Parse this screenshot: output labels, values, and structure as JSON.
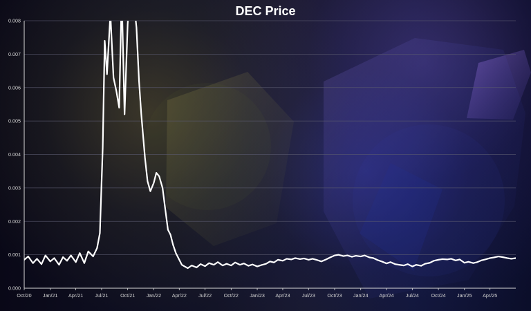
{
  "chart_data": {
    "type": "line",
    "title": "DEC Price",
    "xlabel": "",
    "ylabel": "",
    "ylim": [
      0,
      0.008
    ],
    "xlim": [
      "2020-10-01",
      "2025-07-01"
    ],
    "grid": true,
    "x_ticks": [
      "Oct/20",
      "Jan/21",
      "Apr/21",
      "Jul/21",
      "Oct/21",
      "Jan/22",
      "Apr/22",
      "Jul/22",
      "Oct/22",
      "Jan/23",
      "Apr/23",
      "Jul/23",
      "Oct/23",
      "Jan/24",
      "Apr/24",
      "Jul/24",
      "Oct/24",
      "Jan/25",
      "Apr/25"
    ],
    "y_ticks": [
      "0.000",
      "0.001",
      "0.002",
      "0.003",
      "0.004",
      "0.005",
      "0.006",
      "0.007",
      "0.008"
    ],
    "series": [
      {
        "x": [
          "2020-10-01",
          "2020-10-15",
          "2020-11-01",
          "2020-11-15",
          "2020-12-01",
          "2020-12-15",
          "2021-01-01",
          "2021-01-15",
          "2021-02-01",
          "2021-02-15",
          "2021-03-01",
          "2021-03-15",
          "2021-04-01",
          "2021-04-15",
          "2021-05-01",
          "2021-05-15",
          "2021-06-01",
          "2021-06-15",
          "2021-06-25",
          "2021-07-05",
          "2021-07-12",
          "2021-07-20",
          "2021-08-01",
          "2021-08-12",
          "2021-08-22",
          "2021-09-01",
          "2021-09-10",
          "2021-09-20",
          "2021-10-01",
          "2021-10-10",
          "2021-10-20",
          "2021-11-01",
          "2021-11-10",
          "2021-11-18",
          "2021-11-25",
          "2021-12-01",
          "2021-12-10",
          "2021-12-20",
          "2022-01-01",
          "2022-01-10",
          "2022-01-20",
          "2022-02-01",
          "2022-02-10",
          "2022-02-20",
          "2022-03-01",
          "2022-03-10",
          "2022-03-20",
          "2022-04-01",
          "2022-04-10",
          "2022-04-20",
          "2022-05-01",
          "2022-05-15",
          "2022-06-01",
          "2022-06-15",
          "2022-07-01",
          "2022-07-15",
          "2022-08-01",
          "2022-08-15",
          "2022-09-01",
          "2022-09-15",
          "2022-10-01",
          "2022-10-15",
          "2022-11-01",
          "2022-11-15",
          "2022-12-01",
          "2022-12-15",
          "2023-01-01",
          "2023-01-15",
          "2023-02-01",
          "2023-02-15",
          "2023-03-01",
          "2023-03-15",
          "2023-04-01",
          "2023-04-15",
          "2023-05-01",
          "2023-05-15",
          "2023-06-01",
          "2023-06-15",
          "2023-07-01",
          "2023-07-15",
          "2023-08-01",
          "2023-08-15",
          "2023-09-01",
          "2023-09-15",
          "2023-10-01",
          "2023-10-15",
          "2023-11-01",
          "2023-11-15",
          "2023-12-01",
          "2023-12-15",
          "2024-01-01",
          "2024-01-15",
          "2024-02-01",
          "2024-02-15",
          "2024-03-01",
          "2024-03-15",
          "2024-04-01",
          "2024-04-15",
          "2024-05-01",
          "2024-05-15",
          "2024-06-01",
          "2024-06-15",
          "2024-07-01",
          "2024-07-15",
          "2024-08-01",
          "2024-08-15",
          "2024-09-01",
          "2024-09-15",
          "2024-10-01",
          "2024-10-15",
          "2024-11-01",
          "2024-11-15",
          "2024-12-01",
          "2024-12-15",
          "2025-01-01",
          "2025-01-15",
          "2025-02-01",
          "2025-02-15",
          "2025-03-01",
          "2025-03-15",
          "2025-04-01",
          "2025-04-15",
          "2025-05-01",
          "2025-05-15",
          "2025-06-01",
          "2025-06-15",
          "2025-07-01"
        ],
        "values": [
          0.00085,
          0.00095,
          0.00075,
          0.00088,
          0.00072,
          0.00098,
          0.0008,
          0.0009,
          0.0007,
          0.00093,
          0.00082,
          0.00098,
          0.00078,
          0.00105,
          0.00075,
          0.0011,
          0.00095,
          0.0012,
          0.00165,
          0.0042,
          0.0074,
          0.0064,
          0.0082,
          0.0063,
          0.0059,
          0.0054,
          0.0088,
          0.0052,
          0.0079,
          0.009,
          0.0088,
          0.0078,
          0.0062,
          0.0052,
          0.0045,
          0.0039,
          0.0032,
          0.0029,
          0.00315,
          0.00345,
          0.00335,
          0.003,
          0.0024,
          0.00175,
          0.0016,
          0.0013,
          0.00105,
          0.00085,
          0.0007,
          0.00065,
          0.0006,
          0.00068,
          0.00062,
          0.00072,
          0.00066,
          0.00075,
          0.0007,
          0.00078,
          0.00068,
          0.00073,
          0.00068,
          0.00077,
          0.0007,
          0.00074,
          0.00067,
          0.00071,
          0.00065,
          0.00069,
          0.00073,
          0.0008,
          0.00077,
          0.00085,
          0.00082,
          0.00088,
          0.00086,
          0.0009,
          0.00087,
          0.00089,
          0.00085,
          0.00088,
          0.00084,
          0.0008,
          0.00086,
          0.00092,
          0.00098,
          0.001,
          0.00096,
          0.00098,
          0.00094,
          0.00097,
          0.00095,
          0.00098,
          0.00092,
          0.0009,
          0.00084,
          0.0008,
          0.00074,
          0.00078,
          0.00072,
          0.0007,
          0.00068,
          0.00072,
          0.00065,
          0.0007,
          0.00067,
          0.00073,
          0.00076,
          0.00082,
          0.00085,
          0.00087,
          0.00086,
          0.00088,
          0.00083,
          0.00086,
          0.00076,
          0.00079,
          0.00075,
          0.00078,
          0.00083,
          0.00086,
          0.0009,
          0.00092,
          0.00095,
          0.00093,
          0.0009,
          0.00088,
          0.0009
        ]
      }
    ],
    "colors": {
      "line": "#ffffff",
      "axis": "#d9d9d9",
      "grid": "#5a5a6f",
      "text": "#d4d4d4"
    }
  }
}
